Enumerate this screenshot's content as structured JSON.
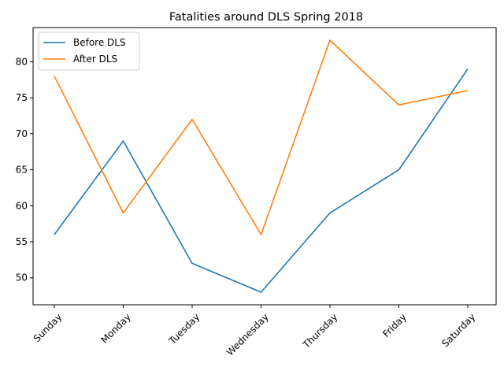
{
  "chart_data": {
    "type": "line",
    "title": "Fatalities around DLS Spring 2018",
    "xlabel": "",
    "ylabel": "",
    "categories": [
      "Sunday",
      "Monday",
      "Tuesday",
      "Wednesday",
      "Thursday",
      "Friday",
      "Saturday"
    ],
    "series": [
      {
        "name": "Before DLS",
        "color": "#1f77b4",
        "values": [
          56,
          69,
          52,
          48,
          59,
          65,
          79
        ]
      },
      {
        "name": "After DLS",
        "color": "#ff7f0e",
        "values": [
          78,
          59,
          72,
          56,
          83,
          74,
          76
        ]
      }
    ],
    "ylim": [
      46.25,
      84.75
    ],
    "yticks": [
      50,
      55,
      60,
      65,
      70,
      75,
      80
    ],
    "xtick_rotation": 45,
    "grid": false,
    "legend": "upper left"
  }
}
